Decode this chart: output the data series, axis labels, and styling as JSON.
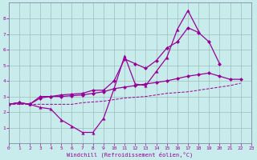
{
  "x_all": [
    0,
    1,
    2,
    3,
    4,
    5,
    6,
    7,
    8,
    9,
    10,
    11,
    12,
    13,
    14,
    15,
    16,
    17,
    18,
    19,
    20,
    21,
    22,
    23
  ],
  "y_spiky": [
    2.5,
    2.6,
    2.5,
    2.3,
    2.2,
    1.5,
    1.1,
    0.7,
    0.7,
    1.6,
    3.5,
    5.6,
    3.8,
    3.7,
    4.6,
    5.5,
    7.3,
    8.5,
    7.2,
    null,
    null,
    null,
    null,
    null
  ],
  "y_upper": [
    2.5,
    2.6,
    2.5,
    3.0,
    3.0,
    3.1,
    3.15,
    3.2,
    3.4,
    3.4,
    4.0,
    5.4,
    5.1,
    4.8,
    5.3,
    6.1,
    6.5,
    7.4,
    7.1,
    6.5,
    5.1,
    null,
    null,
    null
  ],
  "y_lower": [
    2.5,
    2.6,
    2.5,
    2.9,
    3.0,
    3.0,
    3.05,
    3.1,
    3.2,
    3.3,
    3.5,
    3.6,
    3.7,
    3.8,
    3.9,
    4.0,
    4.15,
    4.3,
    4.4,
    4.5,
    4.3,
    4.1,
    4.1,
    null
  ],
  "y_dashed": [
    2.5,
    2.5,
    2.5,
    2.5,
    2.5,
    2.5,
    2.5,
    2.6,
    2.65,
    2.7,
    2.8,
    2.9,
    2.95,
    3.0,
    3.1,
    3.2,
    3.25,
    3.3,
    3.4,
    3.5,
    3.6,
    3.7,
    3.85,
    null
  ],
  "color": "#990099",
  "bg_color": "#c8ecec",
  "grid_color": "#9fbebe",
  "xlabel": "Windchill (Refroidissement éolien,°C)",
  "xlim": [
    0,
    23
  ],
  "ylim": [
    0,
    9
  ],
  "yticks": [
    1,
    2,
    3,
    4,
    5,
    6,
    7,
    8
  ],
  "xticks": [
    0,
    1,
    2,
    3,
    4,
    5,
    6,
    7,
    8,
    9,
    10,
    11,
    12,
    13,
    14,
    15,
    16,
    17,
    18,
    19,
    20,
    21,
    22,
    23
  ]
}
